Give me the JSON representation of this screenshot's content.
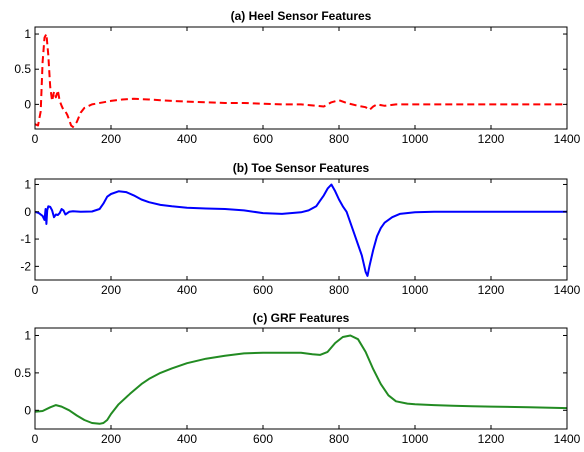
{
  "chart_data": [
    {
      "type": "line",
      "title": "(a) Heel Sensor Features",
      "xlim": [
        0,
        1400
      ],
      "ylim": [
        -0.35,
        1.1
      ],
      "xticks": [
        0,
        200,
        400,
        600,
        800,
        1000,
        1200,
        1400
      ],
      "yticks": [
        0,
        0.5,
        1
      ],
      "ytick_labels": [
        "0",
        "0.5",
        "1"
      ],
      "grid": false,
      "series": [
        {
          "color": "#ff0000",
          "line_style": "dashed",
          "x": [
            0,
            8,
            15,
            20,
            25,
            30,
            35,
            40,
            45,
            50,
            55,
            60,
            65,
            70,
            75,
            80,
            85,
            90,
            95,
            100,
            110,
            120,
            130,
            150,
            180,
            200,
            230,
            260,
            300,
            330,
            360,
            400,
            450,
            500,
            550,
            600,
            650,
            700,
            740,
            760,
            780,
            800,
            820,
            850,
            870,
            880,
            890,
            900,
            920,
            950,
            1000,
            1100,
            1200,
            1300,
            1400
          ],
          "y": [
            -0.28,
            -0.3,
            -0.1,
            0.6,
            0.95,
            1.0,
            0.7,
            0.25,
            0.05,
            0.18,
            0.1,
            0.2,
            0.05,
            -0.02,
            -0.08,
            -0.1,
            -0.15,
            -0.22,
            -0.3,
            -0.32,
            -0.25,
            -0.12,
            -0.05,
            0.0,
            0.03,
            0.05,
            0.07,
            0.08,
            0.07,
            0.06,
            0.05,
            0.04,
            0.03,
            0.02,
            0.02,
            0.01,
            0.0,
            0.0,
            -0.02,
            -0.03,
            0.03,
            0.06,
            0.02,
            -0.02,
            -0.04,
            -0.08,
            -0.03,
            0.0,
            -0.02,
            0.0,
            0.0,
            0.0,
            0.0,
            0.0,
            0.0
          ]
        }
      ]
    },
    {
      "type": "line",
      "title": "(b) Toe Sensor Features",
      "xlim": [
        0,
        1400
      ],
      "ylim": [
        -2.5,
        1.2
      ],
      "xticks": [
        0,
        200,
        400,
        600,
        800,
        1000,
        1200,
        1400
      ],
      "yticks": [
        -2,
        -1,
        0,
        1
      ],
      "ytick_labels": [
        "-2",
        "-1",
        "0",
        "1"
      ],
      "grid": false,
      "series": [
        {
          "color": "#0000ff",
          "line_style": "solid",
          "x": [
            0,
            10,
            20,
            25,
            28,
            30,
            32,
            35,
            40,
            45,
            50,
            55,
            60,
            65,
            70,
            75,
            80,
            90,
            100,
            120,
            150,
            170,
            180,
            190,
            200,
            220,
            240,
            260,
            280,
            300,
            330,
            360,
            400,
            450,
            500,
            550,
            600,
            650,
            700,
            720,
            740,
            750,
            760,
            770,
            780,
            790,
            800,
            810,
            820,
            830,
            840,
            850,
            860,
            870,
            875,
            880,
            890,
            900,
            910,
            920,
            940,
            960,
            1000,
            1050,
            1100,
            1200,
            1300,
            1400
          ],
          "y": [
            0.0,
            -0.05,
            -0.15,
            -0.3,
            0.1,
            -0.45,
            0.05,
            0.2,
            0.18,
            0.05,
            -0.2,
            -0.1,
            -0.12,
            -0.05,
            0.1,
            0.05,
            -0.1,
            0.0,
            0.02,
            0.0,
            0.01,
            0.1,
            0.3,
            0.55,
            0.65,
            0.75,
            0.72,
            0.6,
            0.45,
            0.35,
            0.25,
            0.2,
            0.15,
            0.12,
            0.1,
            0.05,
            -0.05,
            -0.08,
            -0.02,
            0.05,
            0.2,
            0.4,
            0.6,
            0.85,
            1.0,
            0.75,
            0.45,
            0.2,
            0.0,
            -0.4,
            -0.8,
            -1.2,
            -1.6,
            -2.2,
            -2.35,
            -2.0,
            -1.4,
            -0.9,
            -0.6,
            -0.4,
            -0.2,
            -0.08,
            -0.02,
            0.0,
            0.0,
            0.0,
            0.0,
            0.0
          ]
        }
      ]
    },
    {
      "type": "line",
      "title": "(c) GRF Features",
      "xlim": [
        0,
        1400
      ],
      "ylim": [
        -0.25,
        1.1
      ],
      "xticks": [
        0,
        200,
        400,
        600,
        800,
        1000,
        1200,
        1400
      ],
      "yticks": [
        0,
        0.5,
        1
      ],
      "ytick_labels": [
        "0",
        "0.5",
        "1"
      ],
      "grid": false,
      "series": [
        {
          "color": "#228b22",
          "line_style": "solid",
          "x": [
            0,
            20,
            40,
            55,
            70,
            90,
            110,
            130,
            150,
            170,
            180,
            190,
            200,
            220,
            250,
            280,
            300,
            330,
            360,
            400,
            450,
            500,
            550,
            600,
            650,
            700,
            730,
            750,
            770,
            790,
            810,
            830,
            850,
            870,
            890,
            910,
            930,
            950,
            980,
            1000,
            1050,
            1100,
            1150,
            1200,
            1300,
            1400
          ],
          "y": [
            -0.02,
            -0.01,
            0.04,
            0.07,
            0.05,
            0.0,
            -0.07,
            -0.13,
            -0.17,
            -0.18,
            -0.17,
            -0.13,
            -0.05,
            0.08,
            0.22,
            0.35,
            0.42,
            0.5,
            0.56,
            0.63,
            0.69,
            0.73,
            0.76,
            0.77,
            0.77,
            0.77,
            0.75,
            0.74,
            0.78,
            0.9,
            0.98,
            1.0,
            0.95,
            0.78,
            0.55,
            0.35,
            0.2,
            0.12,
            0.09,
            0.08,
            0.07,
            0.06,
            0.055,
            0.05,
            0.04,
            0.03
          ]
        }
      ]
    }
  ]
}
